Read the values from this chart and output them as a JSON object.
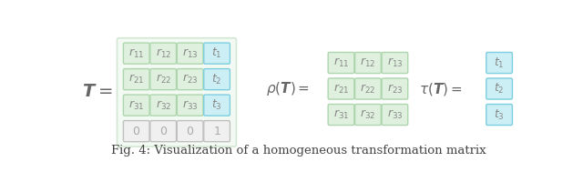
{
  "bg_color": "#ffffff",
  "green_bg": "#dff0df",
  "green_border": "#aed6ae",
  "teal_bg": "#cceef5",
  "teal_border": "#7dcfe0",
  "gray_bg": "#f0f0f0",
  "gray_border": "#c0c0c0",
  "gray_text": "#aaaaaa",
  "text_color": "#888888",
  "label_color": "#666666",
  "caption": "Fig. 4: Visualization of a homogeneous transformation matrix",
  "caption_fontsize": 9.5
}
